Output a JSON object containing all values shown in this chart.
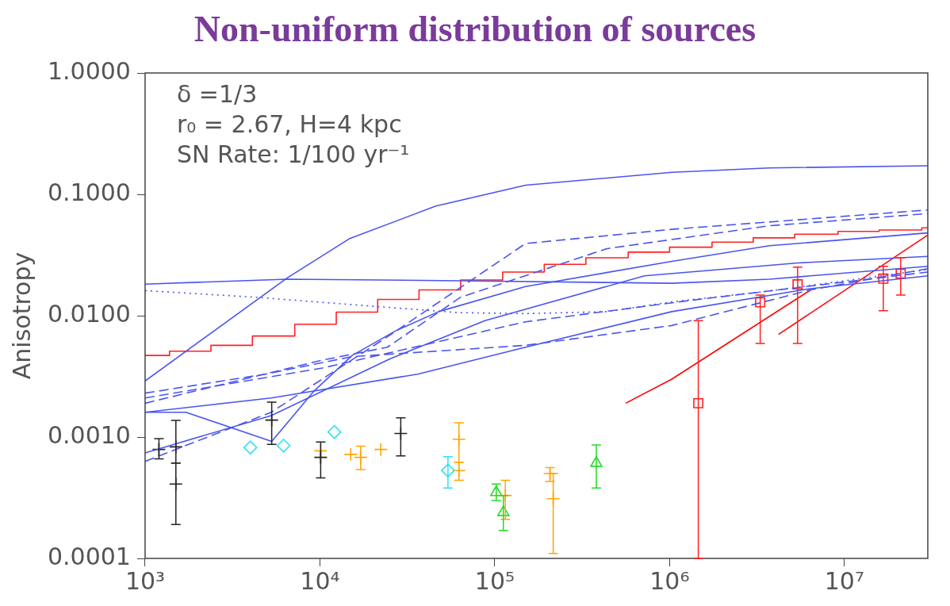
{
  "chart_data": {
    "type": "line",
    "title": "Non-uniform distribution of sources",
    "ylabel": "Anisotropy",
    "log": "xy",
    "grid": false,
    "legend": false,
    "xlim": [
      1000,
      30000000
    ],
    "ylim": [
      0.0001,
      1
    ],
    "xticks": [
      {
        "value": 1000,
        "label": "10³"
      },
      {
        "value": 10000,
        "label": "10⁴"
      },
      {
        "value": 100000,
        "label": "10⁵"
      },
      {
        "value": 1000000,
        "label": "10⁶"
      },
      {
        "value": 10000000,
        "label": "10⁷"
      }
    ],
    "yticks": [
      {
        "value": 0.0001,
        "label": "0.0001"
      },
      {
        "value": 0.001,
        "label": "0.0010"
      },
      {
        "value": 0.01,
        "label": "0.0100"
      },
      {
        "value": 0.1,
        "label": "0.1000"
      },
      {
        "value": 1,
        "label": "1.0000"
      }
    ],
    "annotations": [
      "δ =1/3",
      "r₀ = 2.67, H=4 kpc",
      "SN Rate: 1/100 yr⁻¹"
    ],
    "series": [
      {
        "type": "line",
        "color": "#4a55ee",
        "line_style": "solid",
        "x": [
          1000,
          6500,
          14700,
          46000,
          150000,
          1030000,
          3700000,
          30000000
        ],
        "values": [
          0.0029,
          0.0205,
          0.043,
          0.08,
          0.119,
          0.152,
          0.165,
          0.172
        ]
      },
      {
        "type": "line",
        "color": "#4a55ee",
        "line_style": "solid",
        "x": [
          1000,
          6500,
          63800,
          1030000,
          3730000,
          30000000
        ],
        "values": [
          0.0182,
          0.02,
          0.0194,
          0.0185,
          0.02,
          0.0255
        ]
      },
      {
        "type": "line",
        "color": "#4a55ee",
        "line_style": "solid",
        "x": [
          1000,
          1710,
          5300,
          9270,
          15300,
          27100,
          47800,
          150000,
          1030000,
          3730000,
          30000000
        ],
        "values": [
          0.0016,
          0.0016,
          0.00092,
          0.0024,
          0.0047,
          0.0075,
          0.0108,
          0.0174,
          0.028,
          0.0377,
          0.0481
        ]
      },
      {
        "type": "line",
        "color": "#4a55ee",
        "line_style": "solid",
        "x": [
          1000,
          5260,
          36200,
          150000,
          1030000,
          6380000,
          30000000
        ],
        "values": [
          0.0016,
          0.0021,
          0.0033,
          0.0055,
          0.0108,
          0.0167,
          0.0213
        ]
      },
      {
        "type": "line",
        "color": "#4a55ee",
        "line_style": "solid",
        "x": [
          1000,
          5260,
          25100,
          87900,
          718000,
          5430000,
          30000000
        ],
        "values": [
          0.00074,
          0.0015,
          0.0044,
          0.0091,
          0.0213,
          0.0272,
          0.0308
        ]
      },
      {
        "type": "line",
        "color": "#4a55ee",
        "line_style": "dotted",
        "x": [
          1000,
          4250,
          21200,
          61800,
          150000,
          439000,
          1030000,
          3730000,
          30000000
        ],
        "values": [
          0.0161,
          0.0142,
          0.0119,
          0.0106,
          0.0104,
          0.0108,
          0.013,
          0.016,
          0.024
        ]
      },
      {
        "type": "line",
        "color": "#4a55ee",
        "line_style": "dashed",
        "x": [
          1000,
          10300,
          24300,
          63800,
          439000,
          3730000,
          30000000
        ],
        "values": [
          0.0019,
          0.0043,
          0.0055,
          0.0142,
          0.0357,
          0.0551,
          0.0694
        ]
      },
      {
        "type": "line",
        "color": "#4a55ee",
        "line_style": "dashed",
        "x": [
          1000,
          5260,
          25100,
          150000,
          1030000,
          30000000
        ],
        "values": [
          0.00063,
          0.0016,
          0.0069,
          0.0393,
          0.0515,
          0.0743
        ]
      },
      {
        "type": "line",
        "color": "#4a55ee",
        "line_style": "dashed",
        "x": [
          1000,
          4880,
          15300,
          150000,
          1030000,
          6380000,
          30000000
        ],
        "values": [
          0.0023,
          0.0033,
          0.0046,
          0.0057,
          0.0083,
          0.0163,
          0.0244
        ]
      },
      {
        "type": "line",
        "color": "#4a55ee",
        "line_style": "dashed",
        "x": [
          1000,
          10300,
          150000,
          1280000,
          30000000
        ],
        "values": [
          0.0021,
          0.0037,
          0.0089,
          0.0133,
          0.0229
        ]
      },
      {
        "type": "step",
        "color": "#ff2020",
        "line_style": "solid",
        "x": [
          1000,
          1380,
          2380,
          4110,
          7180,
          12400,
          21400,
          36900,
          63800,
          111000,
          192000,
          332000,
          580000,
          1000000,
          1750000,
          3010000,
          5200000,
          9200000,
          15800000,
          27700000,
          30000000
        ],
        "values": [
          0.0047,
          0.0051,
          0.0057,
          0.0068,
          0.0085,
          0.0107,
          0.0136,
          0.0163,
          0.0197,
          0.0229,
          0.0265,
          0.03,
          0.0334,
          0.0367,
          0.0404,
          0.0438,
          0.0469,
          0.0495,
          0.0508,
          0.053,
          0.053
        ]
      },
      {
        "type": "line",
        "color": "#ff0000",
        "line_style": "solid",
        "x": [
          561000,
          1030000,
          6500000
        ],
        "values": [
          0.0019,
          0.003,
          0.0165
        ]
      },
      {
        "type": "line",
        "color": "#ff0000",
        "line_style": "solid",
        "x": [
          4200000,
          30000000
        ],
        "values": [
          0.007,
          0.0462
        ]
      },
      {
        "type": "scatter",
        "color": "#222222",
        "marker": "cross",
        "x": [
          1200,
          1500,
          1500,
          5300,
          10100,
          29000
        ],
        "values": [
          0.00079,
          0.00083,
          0.00041,
          0.00138,
          0.00068,
          0.00107
        ],
        "errors": [
          [
            0.00066,
            0.00097
          ],
          [
            0.00061,
            0.00137
          ],
          [
            0.00019,
            0.00061
          ],
          [
            0.00087,
            0.00194
          ],
          [
            0.00046,
            0.00091
          ],
          [
            0.0007,
            0.00144
          ]
        ]
      },
      {
        "type": "scatter",
        "color": "#33e0f0",
        "marker": "diamond",
        "x": [
          4000,
          6200,
          12100,
          54000
        ],
        "values": [
          0.00082,
          0.00085,
          0.0011,
          0.00053
        ],
        "errors": [
          null,
          null,
          null,
          [
            0.00038,
            0.00069
          ]
        ]
      },
      {
        "type": "scatter",
        "color": "#ffa500",
        "marker": "cross",
        "x": [
          10100,
          15000,
          17100,
          22300,
          62400,
          62400,
          115000,
          207000,
          216000
        ],
        "values": [
          0.00077,
          0.00072,
          0.00068,
          0.00079,
          0.00096,
          0.00053,
          0.00033,
          0.0005,
          0.00031
        ],
        "errors": [
          null,
          null,
          [
            0.00054,
            0.00084
          ],
          null,
          [
            0.00062,
            0.00131
          ],
          [
            0.00044,
            0.00062
          ],
          [
            0.00021,
            0.00044
          ],
          [
            0.00043,
            0.00056
          ],
          [
            0.00011,
            0.0005
          ]
        ]
      },
      {
        "type": "scatter",
        "color": "#22dd22",
        "marker": "triangle",
        "x": [
          102000,
          112000,
          381000
        ],
        "values": [
          0.00035,
          0.00024,
          0.00061
        ],
        "errors": [
          [
            0.0003,
            0.00041
          ],
          [
            0.00017,
            0.00033
          ],
          [
            0.00038,
            0.00086
          ]
        ]
      },
      {
        "type": "scatter",
        "color": "#ff2020",
        "marker": "square",
        "x": [
          1460000,
          3300000,
          5400000,
          16700000,
          21000000
        ],
        "values": [
          0.0019,
          0.0129,
          0.0181,
          0.0202,
          0.0222
        ],
        "errors": [
          [
            0.0001,
            0.0091
          ],
          [
            0.0059,
            0.0148
          ],
          [
            0.0059,
            0.0251
          ],
          [
            0.011,
            0.0255
          ],
          [
            0.0148,
            0.03
          ]
        ]
      }
    ]
  }
}
